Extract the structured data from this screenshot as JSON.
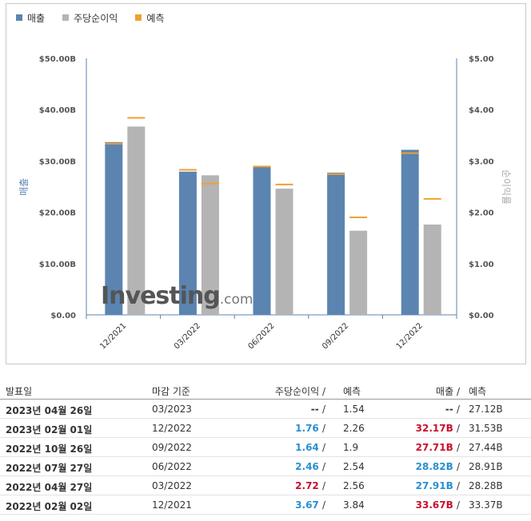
{
  "legend": [
    {
      "label": "매출",
      "color": "#5b84b1"
    },
    {
      "label": "주당순이익",
      "color": "#b4b4b4"
    },
    {
      "label": "예측",
      "color": "#f0a030"
    }
  ],
  "chart_data": {
    "type": "bar",
    "categories": [
      "12/2021",
      "03/2022",
      "06/2022",
      "09/2022",
      "12/2022"
    ],
    "series": [
      {
        "name": "매출",
        "axis": "left",
        "values": [
          33.67,
          27.91,
          28.82,
          27.71,
          32.17
        ],
        "forecast": [
          33.37,
          28.28,
          28.91,
          27.44,
          31.53
        ]
      },
      {
        "name": "주당순이익",
        "axis": "right",
        "values": [
          3.67,
          2.72,
          2.46,
          1.64,
          1.76
        ],
        "forecast": [
          3.84,
          2.56,
          2.54,
          1.9,
          2.26
        ]
      }
    ],
    "left_axis": {
      "title": "매출",
      "min": 0,
      "max": 50,
      "ticks": [
        "$0.00",
        "$10.00B",
        "$20.00B",
        "$30.00B",
        "$40.00B",
        "$50.00B"
      ]
    },
    "right_axis": {
      "title": "순이익률",
      "min": 0,
      "max": 5,
      "ticks": [
        "$0.00",
        "$1.00",
        "$2.00",
        "$3.00",
        "$4.00",
        "$5.00"
      ]
    },
    "colors": {
      "revenue": "#5b84b1",
      "eps": "#b4b4b4",
      "forecast": "#f0a030"
    }
  },
  "watermark": {
    "brand": "Investing",
    "suffix": ".com"
  },
  "table": {
    "headers": {
      "date": "발표일",
      "period": "마감 기준",
      "eps": "주당순이익",
      "eps_forecast": "예측",
      "revenue": "매출",
      "revenue_forecast": "예측"
    },
    "rows": [
      {
        "date": "2023년 04월 26일",
        "period": "03/2023",
        "eps": "--",
        "eps_forecast": "1.54",
        "revenue": "--",
        "revenue_forecast": "27.12B",
        "eps_status": "neutral",
        "rev_status": "neutral"
      },
      {
        "date": "2023년 02월 01일",
        "period": "12/2022",
        "eps": "1.76",
        "eps_forecast": "2.26",
        "revenue": "32.17B",
        "revenue_forecast": "31.53B",
        "eps_status": "pos",
        "rev_status": "neg"
      },
      {
        "date": "2022년 10월 26일",
        "period": "09/2022",
        "eps": "1.64",
        "eps_forecast": "1.9",
        "revenue": "27.71B",
        "revenue_forecast": "27.44B",
        "eps_status": "pos",
        "rev_status": "neg"
      },
      {
        "date": "2022년 07월 27일",
        "period": "06/2022",
        "eps": "2.46",
        "eps_forecast": "2.54",
        "revenue": "28.82B",
        "revenue_forecast": "28.91B",
        "eps_status": "pos",
        "rev_status": "pos"
      },
      {
        "date": "2022년 04월 27일",
        "period": "03/2022",
        "eps": "2.72",
        "eps_forecast": "2.56",
        "revenue": "27.91B",
        "revenue_forecast": "28.28B",
        "eps_status": "neg",
        "rev_status": "pos"
      },
      {
        "date": "2022년 02월 02일",
        "period": "12/2021",
        "eps": "3.67",
        "eps_forecast": "3.84",
        "revenue": "33.67B",
        "revenue_forecast": "33.37B",
        "eps_status": "pos",
        "rev_status": "neg"
      }
    ]
  }
}
